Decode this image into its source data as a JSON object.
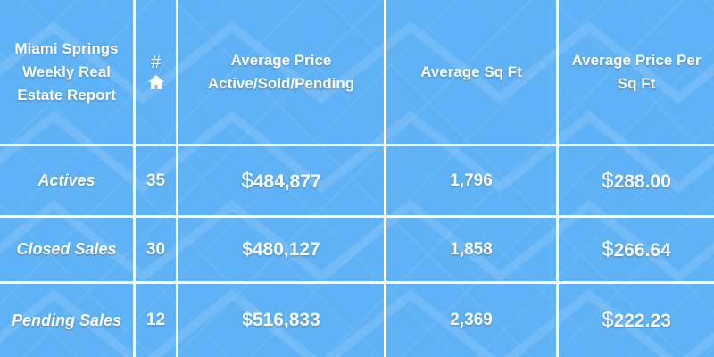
{
  "table": {
    "title": "Miami Springs Weekly Real Estate Report",
    "headers": {
      "count_symbol": "#",
      "count_icon": "house-icon",
      "avg_price": "Average Price Active/Sold/Pending",
      "avg_sqft": "Average Sq Ft",
      "avg_price_sqft": "Average Price Per Sq Ft"
    },
    "rows": [
      {
        "label": "Actives",
        "count": "35",
        "currency": "$",
        "avg_price": "484,877",
        "avg_sqft": "1,796",
        "avg_price_sqft": "288.00"
      },
      {
        "label": "Closed Sales",
        "count": "30",
        "currency": "$",
        "avg_price": "480,127",
        "avg_sqft": "1,858",
        "avg_price_sqft": "266.64"
      },
      {
        "label": "Pending Sales",
        "count": "12",
        "currency": "$",
        "avg_price": "516,833",
        "avg_sqft": "2,369",
        "avg_price_sqft": "222.23"
      }
    ]
  },
  "colors": {
    "background": "#5fb2f5",
    "grid_lines": "#ffffff",
    "text": "#ffffff"
  }
}
